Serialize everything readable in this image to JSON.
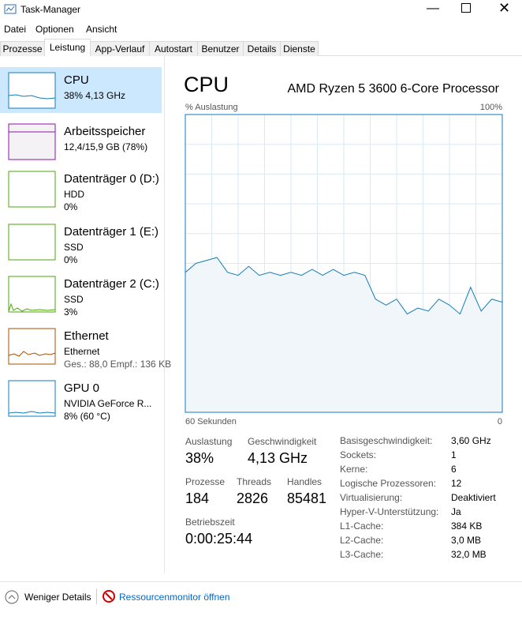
{
  "window_title": "Task-Manager",
  "menu": [
    "Datei",
    "Optionen",
    "Ansicht"
  ],
  "tabs": [
    "Prozesse",
    "Leistung",
    "App-Verlauf",
    "Autostart",
    "Benutzer",
    "Details",
    "Dienste"
  ],
  "sidebar": [
    {
      "title": "CPU",
      "lines": [
        "38% 4,13 GHz"
      ]
    },
    {
      "title": "Arbeitsspeicher",
      "lines": [
        "12,4/15,9 GB (78%)"
      ]
    },
    {
      "title": "Datenträger 0 (D:)",
      "lines": [
        "HDD",
        "0%"
      ]
    },
    {
      "title": "Datenträger 1 (E:)",
      "lines": [
        "SSD",
        "0%"
      ]
    },
    {
      "title": "Datenträger 2 (C:)",
      "lines": [
        "SSD",
        "3%"
      ]
    },
    {
      "title": "Ethernet",
      "lines": [
        "Ethernet",
        "Ges.: 88,0 Empf.: 136 KB"
      ]
    },
    {
      "title": "GPU 0",
      "lines": [
        "NVIDIA GeForce R...",
        "8% (60 °C)"
      ]
    }
  ],
  "main": {
    "title": "CPU",
    "processor": "AMD Ryzen 5 3600 6-Core Processor"
  },
  "chart_data": {
    "type": "line",
    "y_label": "% Auslastung",
    "y_max_label": "100%",
    "x_label": "60 Sekunden",
    "x_end_label": "0",
    "ylim": [
      0,
      100
    ],
    "values": [
      47,
      50,
      51,
      52,
      47,
      46,
      49,
      46,
      47,
      46,
      47,
      46,
      48,
      46,
      48,
      46,
      47,
      46,
      38,
      36,
      38,
      33,
      35,
      34,
      38,
      36,
      33,
      42,
      34,
      38,
      37
    ]
  },
  "stats": [
    {
      "label": "Auslastung",
      "value": "38%"
    },
    {
      "label": "Geschwindigkeit",
      "value": "4,13 GHz"
    },
    {
      "label": "Prozesse",
      "value": "184"
    },
    {
      "label": "Threads",
      "value": "2826"
    },
    {
      "label": "Handles",
      "value": "85481"
    },
    {
      "label": "Betriebszeit",
      "value": "0:00:25:44"
    }
  ],
  "details": [
    [
      "Basisgeschwindigkeit:",
      "3,60 GHz"
    ],
    [
      "Sockets:",
      "1"
    ],
    [
      "Kerne:",
      "6"
    ],
    [
      "Logische Prozessoren:",
      "12"
    ],
    [
      "Virtualisierung:",
      "Deaktiviert"
    ],
    [
      "Hyper-V-Unterstützung:",
      "Ja"
    ],
    [
      "L1-Cache:",
      "384 KB"
    ],
    [
      "L2-Cache:",
      "3,0 MB"
    ],
    [
      "L3-Cache:",
      "32,0 MB"
    ]
  ],
  "footer": {
    "less": "Weniger Details",
    "monitor": "Ressourcenmonitor öffnen"
  }
}
